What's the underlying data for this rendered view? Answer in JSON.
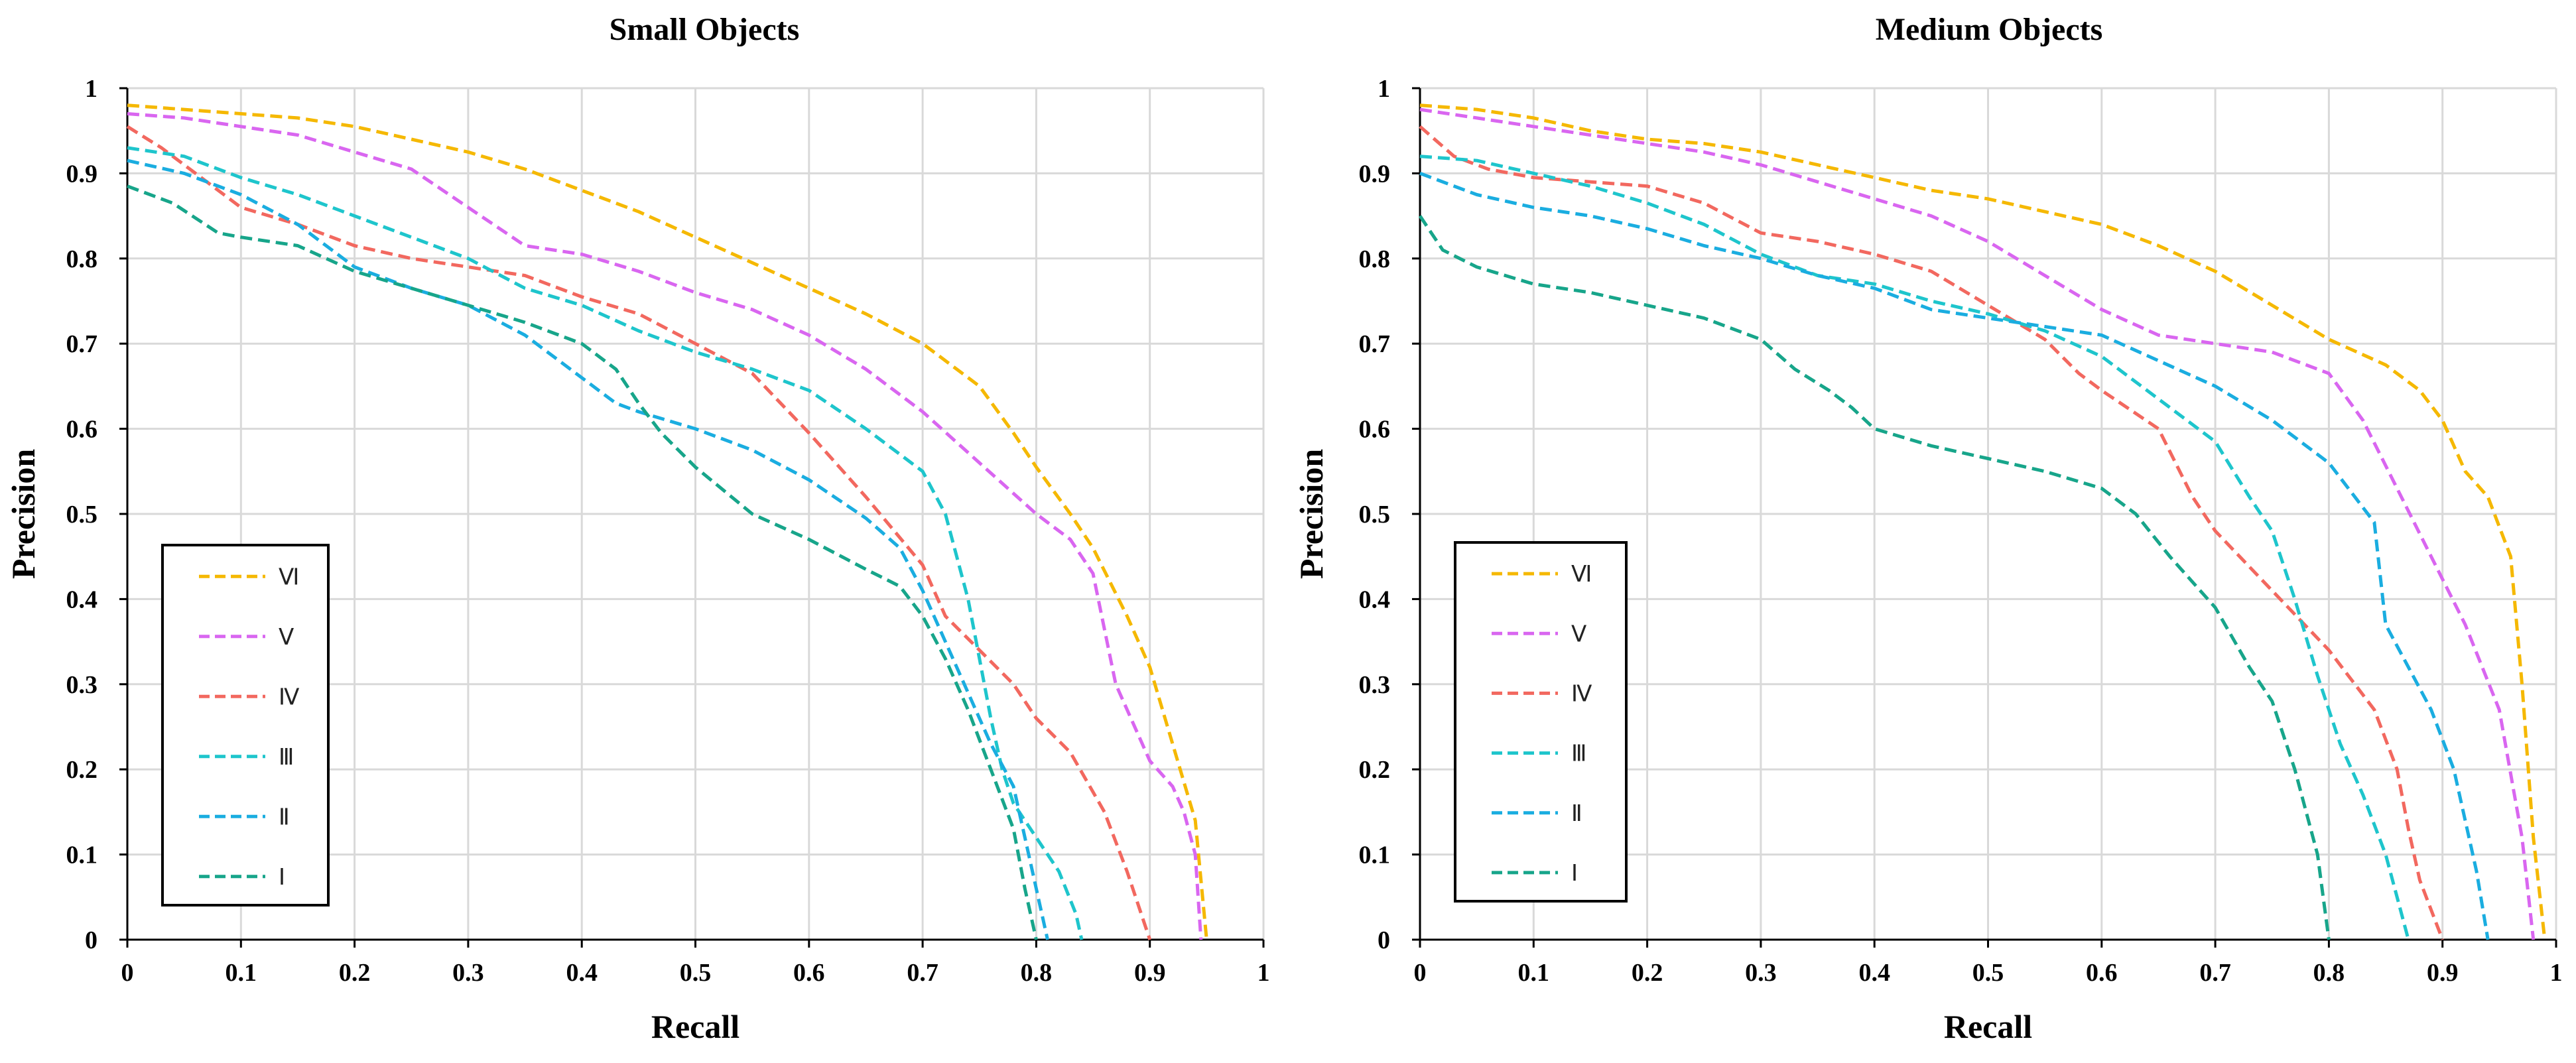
{
  "chart_data": [
    {
      "type": "line",
      "title": "Small Objects",
      "xlabel": "Recall",
      "ylabel": "Precision",
      "xlim": [
        0,
        1
      ],
      "ylim": [
        0,
        1
      ],
      "xticks": [
        0,
        0.1,
        0.2,
        0.3,
        0.4,
        0.5,
        0.6,
        0.7,
        0.8,
        0.9,
        1
      ],
      "yticks": [
        0,
        0.1,
        0.2,
        0.3,
        0.4,
        0.5,
        0.6,
        0.7,
        0.8,
        0.9,
        1
      ],
      "xtick_labels": [
        "0",
        "0.1",
        "0.2",
        "0.3",
        "0.4",
        "0.5",
        "0.6",
        "0.7",
        "0.8",
        "0.9",
        "1"
      ],
      "ytick_labels": [
        "0",
        "0.1",
        "0.2",
        "0.3",
        "0.4",
        "0.5",
        "0.6",
        "0.7",
        "0.8",
        "0.9",
        "1"
      ],
      "grid": true,
      "legend_position": "bottom-left",
      "series": [
        {
          "name": "Ⅵ",
          "color": "#F5B800",
          "x": [
            0,
            0.05,
            0.1,
            0.15,
            0.2,
            0.25,
            0.3,
            0.35,
            0.4,
            0.45,
            0.5,
            0.55,
            0.6,
            0.65,
            0.7,
            0.75,
            0.78,
            0.8,
            0.83,
            0.85,
            0.88,
            0.9,
            0.92,
            0.94,
            0.95
          ],
          "y": [
            0.98,
            0.975,
            0.97,
            0.965,
            0.955,
            0.94,
            0.925,
            0.905,
            0.88,
            0.855,
            0.825,
            0.795,
            0.765,
            0.735,
            0.7,
            0.65,
            0.595,
            0.555,
            0.5,
            0.46,
            0.38,
            0.32,
            0.23,
            0.14,
            0
          ]
        },
        {
          "name": "Ⅴ",
          "color": "#D966F0",
          "x": [
            0,
            0.05,
            0.1,
            0.15,
            0.2,
            0.25,
            0.3,
            0.35,
            0.4,
            0.45,
            0.5,
            0.55,
            0.6,
            0.65,
            0.7,
            0.75,
            0.8,
            0.83,
            0.85,
            0.87,
            0.9,
            0.92,
            0.93,
            0.94,
            0.945
          ],
          "y": [
            0.97,
            0.965,
            0.955,
            0.945,
            0.925,
            0.905,
            0.86,
            0.815,
            0.805,
            0.785,
            0.76,
            0.74,
            0.71,
            0.67,
            0.62,
            0.56,
            0.5,
            0.47,
            0.43,
            0.3,
            0.21,
            0.18,
            0.15,
            0.1,
            0
          ]
        },
        {
          "name": "Ⅳ",
          "color": "#F2685F",
          "x": [
            0,
            0.03,
            0.06,
            0.1,
            0.15,
            0.2,
            0.25,
            0.3,
            0.35,
            0.4,
            0.45,
            0.5,
            0.55,
            0.6,
            0.65,
            0.7,
            0.72,
            0.75,
            0.78,
            0.8,
            0.83,
            0.86,
            0.88,
            0.895,
            0.9
          ],
          "y": [
            0.955,
            0.93,
            0.9,
            0.86,
            0.84,
            0.815,
            0.8,
            0.79,
            0.78,
            0.755,
            0.735,
            0.7,
            0.665,
            0.595,
            0.52,
            0.44,
            0.38,
            0.34,
            0.3,
            0.26,
            0.22,
            0.15,
            0.08,
            0.02,
            0
          ]
        },
        {
          "name": "Ⅲ",
          "color": "#1EC5CC",
          "x": [
            0,
            0.05,
            0.1,
            0.15,
            0.2,
            0.25,
            0.3,
            0.35,
            0.4,
            0.45,
            0.5,
            0.55,
            0.6,
            0.65,
            0.7,
            0.72,
            0.74,
            0.75,
            0.76,
            0.77,
            0.78,
            0.8,
            0.82,
            0.835,
            0.84
          ],
          "y": [
            0.93,
            0.92,
            0.895,
            0.875,
            0.85,
            0.825,
            0.8,
            0.765,
            0.745,
            0.715,
            0.69,
            0.67,
            0.645,
            0.6,
            0.55,
            0.5,
            0.4,
            0.33,
            0.26,
            0.2,
            0.16,
            0.12,
            0.08,
            0.03,
            0
          ]
        },
        {
          "name": "Ⅱ",
          "color": "#1AADE0",
          "x": [
            0,
            0.05,
            0.1,
            0.15,
            0.2,
            0.25,
            0.3,
            0.35,
            0.4,
            0.43,
            0.45,
            0.5,
            0.55,
            0.6,
            0.65,
            0.68,
            0.7,
            0.72,
            0.74,
            0.76,
            0.78,
            0.79,
            0.8,
            0.81
          ],
          "y": [
            0.915,
            0.9,
            0.875,
            0.84,
            0.79,
            0.765,
            0.745,
            0.71,
            0.66,
            0.63,
            0.62,
            0.6,
            0.575,
            0.54,
            0.495,
            0.46,
            0.41,
            0.35,
            0.29,
            0.23,
            0.18,
            0.12,
            0.06,
            0
          ]
        },
        {
          "name": "Ⅰ",
          "color": "#17A58A",
          "x": [
            0,
            0.04,
            0.08,
            0.1,
            0.15,
            0.2,
            0.25,
            0.3,
            0.35,
            0.4,
            0.43,
            0.45,
            0.47,
            0.5,
            0.55,
            0.6,
            0.65,
            0.68,
            0.7,
            0.72,
            0.74,
            0.76,
            0.78,
            0.79,
            0.8
          ],
          "y": [
            0.885,
            0.865,
            0.83,
            0.825,
            0.815,
            0.785,
            0.765,
            0.745,
            0.725,
            0.7,
            0.67,
            0.63,
            0.595,
            0.555,
            0.5,
            0.47,
            0.435,
            0.415,
            0.38,
            0.33,
            0.27,
            0.2,
            0.13,
            0.06,
            0
          ]
        }
      ]
    },
    {
      "type": "line",
      "title": "Medium Objects",
      "xlabel": "Recall",
      "ylabel": "Precision",
      "xlim": [
        0,
        1
      ],
      "ylim": [
        0,
        1
      ],
      "xticks": [
        0,
        0.1,
        0.2,
        0.3,
        0.4,
        0.5,
        0.6,
        0.7,
        0.8,
        0.9,
        1
      ],
      "yticks": [
        0,
        0.1,
        0.2,
        0.3,
        0.4,
        0.5,
        0.6,
        0.7,
        0.8,
        0.9,
        1
      ],
      "xtick_labels": [
        "0",
        "0.1",
        "0.2",
        "0.3",
        "0.4",
        "0.5",
        "0.6",
        "0.7",
        "0.8",
        "0.9",
        "1"
      ],
      "ytick_labels": [
        "0",
        "0.1",
        "0.2",
        "0.3",
        "0.4",
        "0.5",
        "0.6",
        "0.7",
        "0.8",
        "0.9",
        "1"
      ],
      "grid": true,
      "legend_position": "bottom-left",
      "series": [
        {
          "name": "Ⅵ",
          "color": "#F5B800",
          "x": [
            0,
            0.05,
            0.1,
            0.15,
            0.2,
            0.25,
            0.3,
            0.35,
            0.4,
            0.45,
            0.5,
            0.55,
            0.6,
            0.65,
            0.7,
            0.75,
            0.8,
            0.85,
            0.88,
            0.9,
            0.92,
            0.94,
            0.96,
            0.97,
            0.98,
            0.99
          ],
          "y": [
            0.98,
            0.975,
            0.965,
            0.95,
            0.94,
            0.935,
            0.925,
            0.91,
            0.895,
            0.88,
            0.87,
            0.855,
            0.84,
            0.815,
            0.785,
            0.745,
            0.705,
            0.675,
            0.645,
            0.61,
            0.55,
            0.52,
            0.45,
            0.3,
            0.12,
            0
          ]
        },
        {
          "name": "Ⅴ",
          "color": "#D966F0",
          "x": [
            0,
            0.05,
            0.1,
            0.15,
            0.2,
            0.25,
            0.3,
            0.35,
            0.4,
            0.45,
            0.5,
            0.55,
            0.6,
            0.65,
            0.7,
            0.75,
            0.8,
            0.83,
            0.86,
            0.89,
            0.92,
            0.95,
            0.97,
            0.98
          ],
          "y": [
            0.975,
            0.965,
            0.955,
            0.945,
            0.935,
            0.925,
            0.91,
            0.89,
            0.87,
            0.85,
            0.82,
            0.78,
            0.74,
            0.71,
            0.7,
            0.69,
            0.665,
            0.61,
            0.53,
            0.45,
            0.37,
            0.27,
            0.12,
            0
          ]
        },
        {
          "name": "Ⅳ",
          "color": "#F2685F",
          "x": [
            0,
            0.03,
            0.06,
            0.1,
            0.15,
            0.2,
            0.25,
            0.3,
            0.35,
            0.4,
            0.45,
            0.5,
            0.55,
            0.58,
            0.6,
            0.65,
            0.68,
            0.7,
            0.75,
            0.8,
            0.84,
            0.86,
            0.87,
            0.88,
            0.9
          ],
          "y": [
            0.955,
            0.92,
            0.905,
            0.895,
            0.89,
            0.885,
            0.865,
            0.83,
            0.82,
            0.805,
            0.785,
            0.745,
            0.705,
            0.665,
            0.645,
            0.6,
            0.52,
            0.48,
            0.41,
            0.34,
            0.27,
            0.2,
            0.13,
            0.07,
            0
          ]
        },
        {
          "name": "Ⅲ",
          "color": "#1EC5CC",
          "x": [
            0,
            0.05,
            0.1,
            0.15,
            0.2,
            0.25,
            0.3,
            0.35,
            0.4,
            0.45,
            0.5,
            0.55,
            0.6,
            0.65,
            0.7,
            0.73,
            0.75,
            0.77,
            0.79,
            0.81,
            0.83,
            0.85,
            0.86,
            0.87
          ],
          "y": [
            0.92,
            0.915,
            0.9,
            0.885,
            0.865,
            0.84,
            0.805,
            0.78,
            0.77,
            0.75,
            0.735,
            0.715,
            0.685,
            0.635,
            0.585,
            0.52,
            0.48,
            0.4,
            0.31,
            0.23,
            0.17,
            0.1,
            0.05,
            0
          ]
        },
        {
          "name": "Ⅱ",
          "color": "#1AADE0",
          "x": [
            0,
            0.05,
            0.1,
            0.15,
            0.2,
            0.25,
            0.3,
            0.35,
            0.4,
            0.45,
            0.5,
            0.55,
            0.6,
            0.65,
            0.7,
            0.75,
            0.8,
            0.84,
            0.85,
            0.87,
            0.89,
            0.91,
            0.93,
            0.94
          ],
          "y": [
            0.9,
            0.875,
            0.86,
            0.85,
            0.835,
            0.815,
            0.8,
            0.78,
            0.765,
            0.74,
            0.73,
            0.72,
            0.71,
            0.68,
            0.65,
            0.61,
            0.56,
            0.49,
            0.37,
            0.32,
            0.27,
            0.2,
            0.08,
            0
          ]
        },
        {
          "name": "Ⅰ",
          "color": "#17A58A",
          "x": [
            0,
            0.02,
            0.05,
            0.1,
            0.15,
            0.2,
            0.25,
            0.3,
            0.33,
            0.36,
            0.38,
            0.4,
            0.45,
            0.5,
            0.55,
            0.6,
            0.63,
            0.66,
            0.7,
            0.73,
            0.75,
            0.77,
            0.79,
            0.795,
            0.8
          ],
          "y": [
            0.85,
            0.81,
            0.79,
            0.77,
            0.76,
            0.745,
            0.73,
            0.705,
            0.67,
            0.645,
            0.625,
            0.6,
            0.58,
            0.565,
            0.55,
            0.53,
            0.5,
            0.45,
            0.39,
            0.32,
            0.28,
            0.2,
            0.1,
            0.05,
            0
          ]
        }
      ]
    }
  ]
}
